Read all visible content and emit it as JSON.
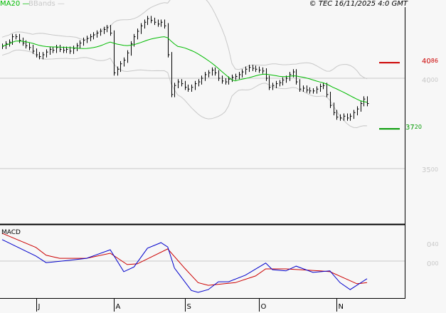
{
  "header": {
    "ma_label": "MA20",
    "bb_label": "BBands",
    "copyright": "© TEC 16/11/2025 4:0 GMT"
  },
  "colors": {
    "ma": "#00bb00",
    "bbands": "#c8c8c8",
    "resistance": "#cc0000",
    "support": "#009900",
    "macd": "#0000cc",
    "signal": "#cc0000",
    "grid": "#c8c8c8"
  },
  "chart_data": {
    "type": "line",
    "price": {
      "ylim": [
        33.1,
        43.9
      ],
      "ticks": [
        {
          "int": "40",
          "dec": "00",
          "value": 40.0
        },
        {
          "int": "35",
          "dec": "00",
          "value": 35.0
        }
      ],
      "resistance": {
        "int": "40",
        "dec": "86",
        "value": 40.86
      },
      "support": {
        "int": "37",
        "dec": "20",
        "value": 37.2
      },
      "closes": [
        41.77,
        41.9,
        42.0,
        42.3,
        42.3,
        42.1,
        41.95,
        41.8,
        41.7,
        41.5,
        41.3,
        41.2,
        41.3,
        41.45,
        41.6,
        41.55,
        41.7,
        41.6,
        41.55,
        41.6,
        41.5,
        41.65,
        41.8,
        41.95,
        42.1,
        42.2,
        42.3,
        42.4,
        42.5,
        42.6,
        42.7,
        42.8,
        42.5,
        40.3,
        40.5,
        40.8,
        41.0,
        41.4,
        41.9,
        42.3,
        42.6,
        42.9,
        43.1,
        43.3,
        43.2,
        43.1,
        43.0,
        43.1,
        42.9,
        41.3,
        39.1,
        39.6,
        39.8,
        39.7,
        39.5,
        39.4,
        39.5,
        39.7,
        39.8,
        40.0,
        40.2,
        40.3,
        40.45,
        40.3,
        40.0,
        39.85,
        39.8,
        39.95,
        40.05,
        40.1,
        40.2,
        40.35,
        40.5,
        40.6,
        40.55,
        40.5,
        40.45,
        40.4,
        40.0,
        39.5,
        39.6,
        39.7,
        39.75,
        39.9,
        40.0,
        40.2,
        40.35,
        39.8,
        39.4,
        39.45,
        39.35,
        39.3,
        39.3,
        39.4,
        39.55,
        39.6,
        39.1,
        38.5,
        38.1,
        37.85,
        37.8,
        37.9,
        37.8,
        37.9,
        38.1,
        38.3,
        38.6,
        38.85,
        38.6
      ]
    },
    "macd": {
      "label": "MACD",
      "ticks": [
        {
          "int": "0",
          "dec": "40",
          "value": 0.4
        },
        {
          "int": "0",
          "dec": "00",
          "value": 0.0
        }
      ],
      "macd_line": [
        [
          0,
          0.55
        ],
        [
          10,
          0.13
        ],
        [
          13,
          -0.04
        ],
        [
          20,
          0.02
        ],
        [
          25,
          0.07
        ],
        [
          32,
          0.29
        ],
        [
          36,
          -0.27
        ],
        [
          39,
          -0.15
        ],
        [
          43,
          0.33
        ],
        [
          47,
          0.47
        ],
        [
          49,
          0.36
        ],
        [
          51,
          -0.18
        ],
        [
          56,
          -0.75
        ],
        [
          58,
          -0.8
        ],
        [
          61,
          -0.73
        ],
        [
          64,
          -0.53
        ],
        [
          67,
          -0.53
        ],
        [
          72,
          -0.36
        ],
        [
          78,
          -0.05
        ],
        [
          80,
          -0.22
        ],
        [
          84,
          -0.25
        ],
        [
          87,
          -0.13
        ],
        [
          92,
          -0.29
        ],
        [
          97,
          -0.25
        ],
        [
          100,
          -0.55
        ],
        [
          103,
          -0.73
        ],
        [
          108,
          -0.45
        ]
      ],
      "signal_line": [
        [
          0,
          0.71
        ],
        [
          10,
          0.35
        ],
        [
          13,
          0.15
        ],
        [
          17,
          0.07
        ],
        [
          25,
          0.07
        ],
        [
          32,
          0.2
        ],
        [
          37,
          -0.09
        ],
        [
          40,
          -0.07
        ],
        [
          49,
          0.31
        ],
        [
          54,
          -0.18
        ],
        [
          58,
          -0.55
        ],
        [
          61,
          -0.62
        ],
        [
          69,
          -0.55
        ],
        [
          75,
          -0.38
        ],
        [
          78,
          -0.2
        ],
        [
          84,
          -0.2
        ],
        [
          94,
          -0.25
        ],
        [
          97,
          -0.27
        ],
        [
          105,
          -0.58
        ],
        [
          108,
          -0.55
        ]
      ]
    },
    "x_ticks": [
      {
        "label": "J",
        "bar": 10
      },
      {
        "label": "A",
        "bar": 33
      },
      {
        "label": "S",
        "bar": 54
      },
      {
        "label": "O",
        "bar": 76
      },
      {
        "label": "N",
        "bar": 99
      }
    ],
    "grid": true
  }
}
